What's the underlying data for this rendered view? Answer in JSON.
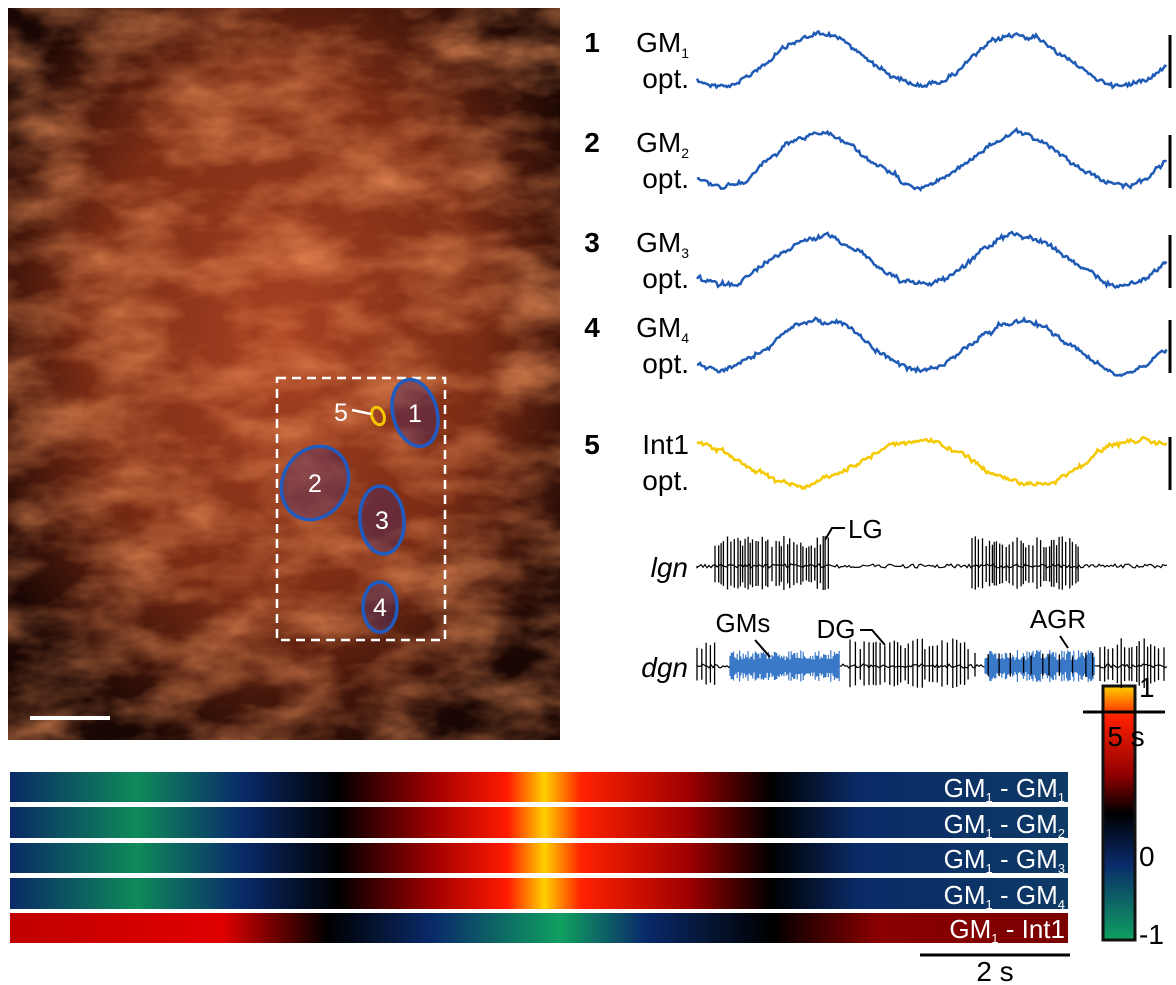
{
  "image": {
    "roi_labels": [
      "1",
      "2",
      "3",
      "4",
      "5"
    ]
  },
  "traces": [
    {
      "number": "1",
      "name": "GM",
      "subscript": "1",
      "suffix": "opt."
    },
    {
      "number": "2",
      "name": "GM",
      "subscript": "2",
      "suffix": "opt."
    },
    {
      "number": "3",
      "name": "GM",
      "subscript": "3",
      "suffix": "opt."
    },
    {
      "number": "4",
      "name": "GM",
      "subscript": "4",
      "suffix": "opt."
    },
    {
      "number": "5",
      "name": "Int1",
      "suffix": "opt."
    }
  ],
  "nerves": [
    {
      "name": "lgn",
      "annotations": [
        "LG"
      ]
    },
    {
      "name": "dgn",
      "annotations": [
        "GMs",
        "DG",
        "AGR"
      ]
    }
  ],
  "trace_scale": "5 s",
  "correlation": {
    "rows": [
      {
        "a": "GM",
        "a_sub": "1",
        "separator": " - ",
        "b": "GM",
        "b_sub": "1"
      },
      {
        "a": "GM",
        "a_sub": "1",
        "separator": " - ",
        "b": "GM",
        "b_sub": "2"
      },
      {
        "a": "GM",
        "a_sub": "1",
        "separator": " - ",
        "b": "GM",
        "b_sub": "3"
      },
      {
        "a": "GM",
        "a_sub": "1",
        "separator": " - ",
        "b": "GM",
        "b_sub": "4"
      },
      {
        "a": "GM",
        "a_sub": "1",
        "separator": " - ",
        "b": "Int1"
      }
    ],
    "colorbar_ticks": [
      1,
      0,
      -1
    ],
    "scale": "2 s"
  }
}
